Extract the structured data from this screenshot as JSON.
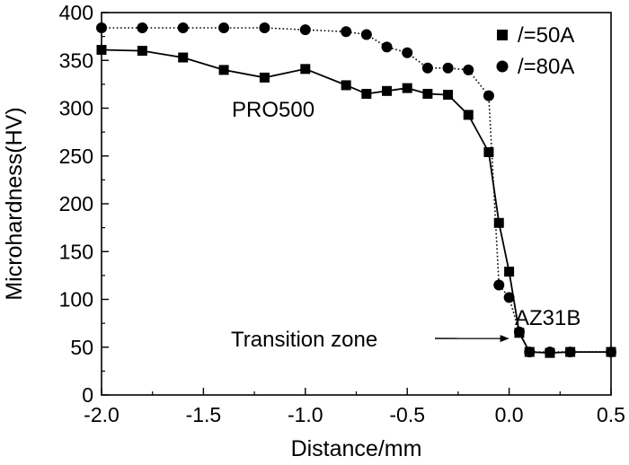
{
  "chart_data": {
    "type": "line",
    "title": "",
    "xlabel": "Distance/mm",
    "ylabel": "Microhardness(HV)",
    "xlim": [
      -2.0,
      0.5
    ],
    "ylim": [
      0,
      400
    ],
    "x_ticks": [
      -2.0,
      -1.5,
      -1.0,
      -0.5,
      0.0,
      0.5
    ],
    "x_tick_labels": [
      "-2.0",
      "-1.5",
      "-1.0",
      "-0.5",
      "0.0",
      "0.5"
    ],
    "y_ticks": [
      0,
      50,
      100,
      150,
      200,
      250,
      300,
      350,
      400
    ],
    "y_tick_labels": [
      "0",
      "50",
      "100",
      "150",
      "200",
      "250",
      "300",
      "350",
      "400"
    ],
    "grid": false,
    "legend_position": "top-right",
    "series": [
      {
        "name": "/=50A",
        "marker": "square",
        "line_style": "solid",
        "x": [
          -2.0,
          -1.8,
          -1.6,
          -1.4,
          -1.2,
          -1.0,
          -0.8,
          -0.7,
          -0.6,
          -0.5,
          -0.4,
          -0.3,
          -0.2,
          -0.1,
          -0.05,
          0.0,
          0.05,
          0.1,
          0.2,
          0.3,
          0.5
        ],
        "y": [
          361,
          360,
          353,
          340,
          332,
          341,
          324,
          315,
          318,
          321,
          315,
          314,
          293,
          254,
          180,
          129,
          65,
          45,
          44,
          45,
          45
        ]
      },
      {
        "name": "/=80A",
        "marker": "circle",
        "line_style": "dotted",
        "x": [
          -2.0,
          -1.8,
          -1.6,
          -1.4,
          -1.2,
          -1.0,
          -0.8,
          -0.7,
          -0.6,
          -0.5,
          -0.4,
          -0.3,
          -0.2,
          -0.1,
          -0.05,
          0.0,
          0.05,
          0.1,
          0.2,
          0.3,
          0.5
        ],
        "y": [
          384,
          384,
          384,
          384,
          384,
          382,
          380,
          377,
          364,
          358,
          342,
          342,
          340,
          313,
          115,
          102,
          66,
          45,
          45,
          45,
          45
        ]
      }
    ],
    "annotations": [
      {
        "text": "PRO500"
      },
      {
        "text": "AZ31B"
      },
      {
        "text": "Transition zone",
        "arrow_to": [
          0.0,
          60
        ]
      }
    ]
  }
}
